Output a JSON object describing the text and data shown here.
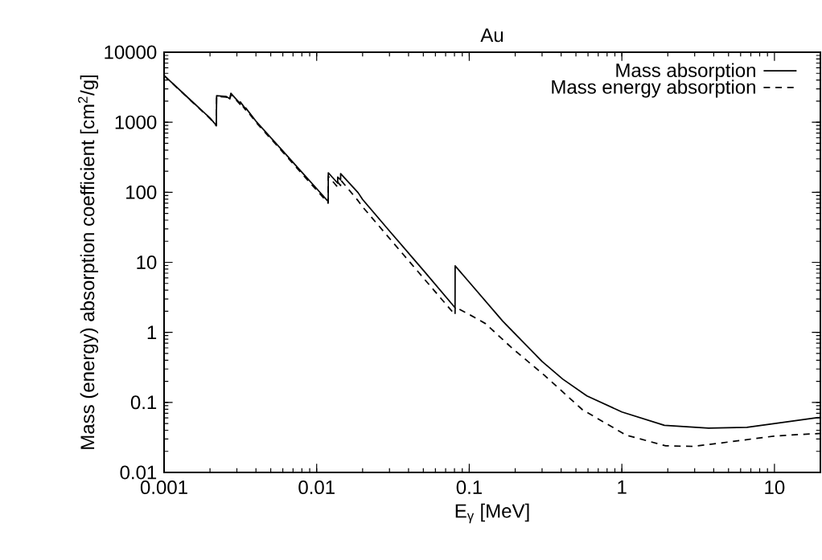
{
  "chart_data": {
    "type": "line",
    "title": "Au",
    "xlabel": "E$_{γ}$ [MeV]",
    "ylabel": "Mass (energy) absorption coefficient [cm$^{2}$/g]",
    "log": "xy",
    "xlim": [
      0.001,
      20
    ],
    "ylim": [
      0.01,
      10000
    ],
    "xticks": [
      0.001,
      0.01,
      0.1,
      1,
      10
    ],
    "yticks": [
      0.01,
      0.1,
      1,
      10,
      100,
      1000,
      10000
    ],
    "grid": false,
    "legend": "top right",
    "series": [
      {
        "name": "Mass absorption",
        "color": "#000000",
        "line_style": "solid",
        "x": [
          0.001,
          0.0015,
          0.002,
          0.0022,
          0.00221,
          0.00256,
          0.0027,
          0.00274,
          0.00315,
          0.00316,
          0.00342,
          0.00343,
          0.004,
          0.006,
          0.008,
          0.01,
          0.0119,
          0.01192,
          0.01373,
          0.01374,
          0.01435,
          0.01436,
          0.0187,
          0.02,
          0.03,
          0.05,
          0.0807,
          0.0808,
          0.1,
          0.166,
          0.3,
          0.41,
          0.59,
          1.0,
          1.9,
          3.7,
          6.6,
          10.5,
          19,
          20
        ],
        "values": [
          4650,
          2050,
          1150,
          904,
          2400,
          2330,
          2160,
          2590,
          1850,
          1950,
          1550,
          1600,
          1036,
          389,
          193,
          113,
          73.7,
          190,
          135,
          165,
          150,
          185,
          98.6,
          79,
          28,
          7.7,
          2.25,
          8.9,
          5.2,
          1.44,
          0.385,
          0.215,
          0.124,
          0.073,
          0.047,
          0.043,
          0.044,
          0.0506,
          0.0605,
          0.061
        ]
      },
      {
        "name": "Mass energy absorption",
        "color": "#000000",
        "line_style": "dashed",
        "x": [
          0.001,
          0.0015,
          0.002,
          0.0022,
          0.00221,
          0.00256,
          0.0027,
          0.00274,
          0.00315,
          0.00316,
          0.00342,
          0.00343,
          0.004,
          0.006,
          0.008,
          0.01,
          0.0119,
          0.01192,
          0.01373,
          0.01374,
          0.01435,
          0.01436,
          0.0187,
          0.02,
          0.03,
          0.05,
          0.0807,
          0.0808,
          0.1,
          0.128,
          0.19,
          0.31,
          0.55,
          1.07,
          1.94,
          2.95,
          5.2,
          9.9,
          17,
          20
        ],
        "values": [
          4640,
          2030,
          1130,
          890,
          2350,
          2280,
          2110,
          2530,
          1800,
          1900,
          1500,
          1550,
          1000,
          375,
          185,
          107,
          70,
          170,
          118,
          140,
          125,
          150,
          75.6,
          62,
          22,
          6.0,
          1.78,
          2.3,
          1.8,
          1.33,
          0.6,
          0.245,
          0.079,
          0.034,
          0.024,
          0.0235,
          0.0275,
          0.033,
          0.0355,
          0.036
        ]
      }
    ]
  }
}
